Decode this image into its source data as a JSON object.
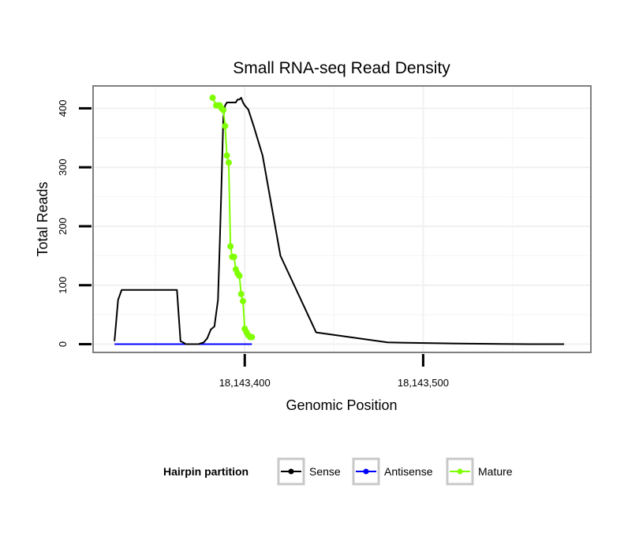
{
  "chart_data": {
    "type": "line",
    "title": "Small RNA-seq Read Density",
    "xlabel": "Genomic Position",
    "ylabel": "Total Reads",
    "xlim": [
      18143315,
      18143594
    ],
    "ylim": [
      -14,
      438
    ],
    "x_ticks": [
      18143400,
      18143500
    ],
    "x_tick_labels": [
      "18,143,400",
      "18,143,500"
    ],
    "y_ticks": [
      0,
      100,
      200,
      300,
      400
    ],
    "y_tick_labels": [
      "0",
      "100",
      "200",
      "300",
      "400"
    ],
    "grid": true,
    "legend": {
      "title": "Hairpin partition",
      "position": "bottom",
      "entries": [
        {
          "name": "Sense",
          "color": "#000000"
        },
        {
          "name": "Antisense",
          "color": "#0000ff"
        },
        {
          "name": "Mature",
          "color": "#7fff00"
        }
      ]
    },
    "series": [
      {
        "name": "Sense",
        "color": "#000000",
        "x": [
          18143327,
          18143329,
          18143331,
          18143335,
          18143340,
          18143345,
          18143349,
          18143350,
          18143352,
          18143355,
          18143358,
          18143360,
          18143362,
          18143364,
          18143366,
          18143367,
          18143368,
          18143369,
          18143370,
          18143371,
          18143372,
          18143374,
          18143377,
          18143379,
          18143381,
          18143383,
          18143385,
          18143386,
          18143387,
          18143388,
          18143389,
          18143390,
          18143391,
          18143392,
          18143393,
          18143394,
          18143395,
          18143396,
          18143397,
          18143398,
          18143399,
          18143400,
          18143402,
          18143405,
          18143410,
          18143420,
          18143440,
          18143480,
          18143520,
          18143560,
          18143579
        ],
        "values": [
          5,
          75,
          92,
          92,
          92,
          92,
          92,
          92,
          92,
          92,
          92,
          92,
          92,
          5,
          2,
          0,
          0,
          0,
          0,
          0,
          0,
          0,
          3,
          10,
          25,
          30,
          75,
          170,
          275,
          385,
          405,
          410,
          410,
          410,
          410,
          410,
          410,
          415,
          415,
          418,
          410,
          405,
          398,
          370,
          320,
          150,
          20,
          3,
          1,
          0,
          0
        ]
      },
      {
        "name": "Antisense",
        "color": "#0000ff",
        "x": [
          18143327,
          18143404
        ],
        "values": [
          0,
          0
        ]
      },
      {
        "name": "Mature",
        "color": "#7fff00",
        "x": [
          18143382,
          18143384,
          18143385,
          18143386,
          18143387,
          18143388,
          18143389,
          18143390,
          18143391,
          18143392,
          18143393,
          18143394,
          18143395,
          18143396,
          18143397,
          18143398,
          18143399,
          18143400,
          18143401,
          18143402,
          18143403,
          18143404
        ],
        "values": [
          418,
          405,
          405,
          405,
          400,
          397,
          370,
          320,
          308,
          166,
          148,
          148,
          127,
          120,
          116,
          85,
          73,
          26,
          20,
          15,
          12,
          12
        ]
      }
    ]
  }
}
